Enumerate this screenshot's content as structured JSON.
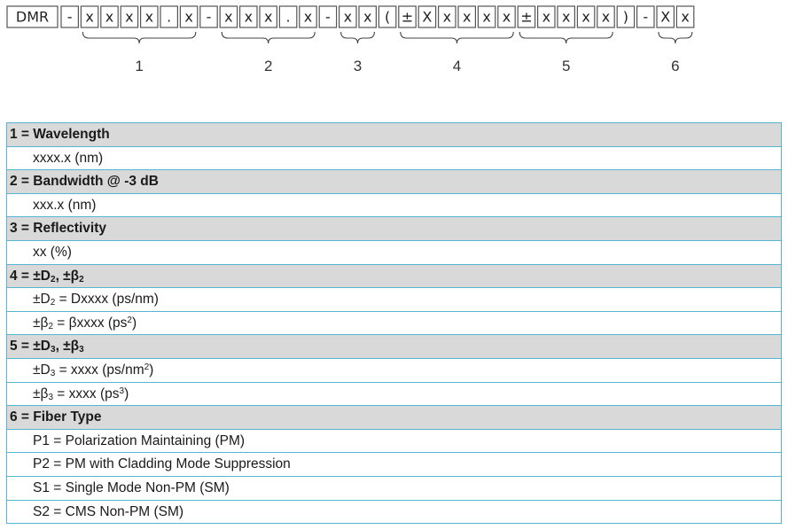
{
  "code": {
    "prefix": "DMR",
    "cells": [
      "-",
      "x",
      "x",
      "x",
      "x",
      ".",
      "x",
      "-",
      "x",
      "x",
      "x",
      ".",
      "x",
      "-",
      "x",
      "x",
      "(",
      "±",
      "X",
      "x",
      "x",
      "x",
      "x",
      "±",
      "x",
      "x",
      "x",
      "x",
      ")",
      "-",
      "X",
      "x"
    ],
    "groups": [
      {
        "number": "1"
      },
      {
        "number": "2"
      },
      {
        "number": "3"
      },
      {
        "number": "4"
      },
      {
        "number": "5"
      },
      {
        "number": "6"
      }
    ]
  },
  "legend": [
    {
      "kind": "header",
      "parts": [
        {
          "t": "1 = Wavelength"
        }
      ]
    },
    {
      "kind": "item",
      "parts": [
        {
          "t": "xxxx.x (nm)"
        }
      ]
    },
    {
      "kind": "header",
      "parts": [
        {
          "t": "2 = Bandwidth @ -3 dB"
        }
      ]
    },
    {
      "kind": "item",
      "parts": [
        {
          "t": "xxx.x (nm)"
        }
      ]
    },
    {
      "kind": "header",
      "parts": [
        {
          "t": "3 = Reflectivity"
        }
      ]
    },
    {
      "kind": "item",
      "parts": [
        {
          "t": "xx (%)"
        }
      ]
    },
    {
      "kind": "header",
      "parts": [
        {
          "t": "4 = ±D"
        },
        {
          "t": "2",
          "s": "sub"
        },
        {
          "t": ", ±β"
        },
        {
          "t": "2",
          "s": "sub"
        }
      ]
    },
    {
      "kind": "item",
      "parts": [
        {
          "t": "±D"
        },
        {
          "t": "2",
          "s": "sub"
        },
        {
          "t": " = Dxxxx (ps/nm)"
        }
      ]
    },
    {
      "kind": "item",
      "parts": [
        {
          "t": "±β"
        },
        {
          "t": "2",
          "s": "sub"
        },
        {
          "t": " = βxxxx (ps"
        },
        {
          "t": "2",
          "s": "sup"
        },
        {
          "t": ")"
        }
      ]
    },
    {
      "kind": "header",
      "parts": [
        {
          "t": "5 = ±D"
        },
        {
          "t": "3",
          "s": "sub"
        },
        {
          "t": ", ±β"
        },
        {
          "t": "3",
          "s": "sub"
        }
      ]
    },
    {
      "kind": "item",
      "parts": [
        {
          "t": "±D"
        },
        {
          "t": "3",
          "s": "sub"
        },
        {
          "t": " = xxxx (ps/nm"
        },
        {
          "t": "2",
          "s": "sup"
        },
        {
          "t": ")"
        }
      ]
    },
    {
      "kind": "item",
      "parts": [
        {
          "t": "±β"
        },
        {
          "t": "3",
          "s": "sub"
        },
        {
          "t": " = xxxx (ps"
        },
        {
          "t": "3",
          "s": "sup"
        },
        {
          "t": ")"
        }
      ]
    },
    {
      "kind": "header",
      "parts": [
        {
          "t": "6 = Fiber Type"
        }
      ]
    },
    {
      "kind": "item",
      "parts": [
        {
          "t": "P1 = Polarization Maintaining (PM)"
        }
      ]
    },
    {
      "kind": "item",
      "parts": [
        {
          "t": "P2 = PM with Cladding Mode Suppression"
        }
      ]
    },
    {
      "kind": "item",
      "parts": [
        {
          "t": "S1 = Single Mode Non-PM (SM)"
        }
      ]
    },
    {
      "kind": "item",
      "parts": [
        {
          "t": "S2 = CMS Non-PM (SM)"
        }
      ]
    }
  ],
  "colors": {
    "header_bg": "#d9d9d9",
    "row_border": "#57b5d3",
    "code_box_border": "#555555"
  }
}
